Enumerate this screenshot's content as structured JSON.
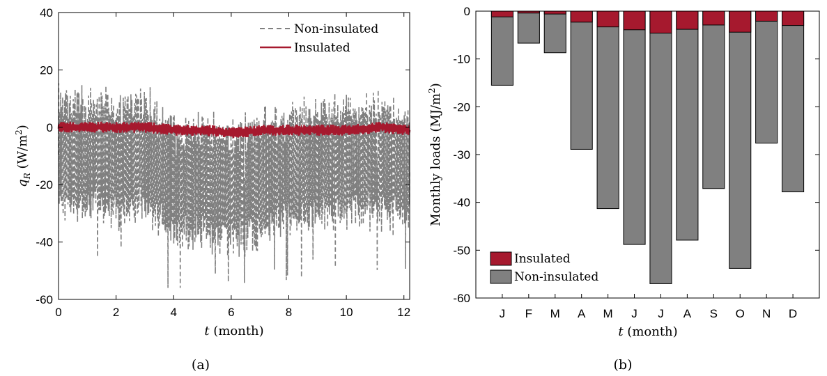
{
  "chart_data": [
    {
      "panel": "(a)",
      "type": "line",
      "xlabel_var": "t",
      "xlabel_unit": "(month)",
      "ylabel_var": "q",
      "ylabel_sub": "R",
      "ylabel_unit": "(W/m",
      "ylabel_sup": "2",
      "ylabel_close": ")",
      "xlim": [
        0,
        12.2
      ],
      "ylim": [
        -60,
        40
      ],
      "xticks": [
        0,
        2,
        4,
        6,
        8,
        10,
        12
      ],
      "yticks": [
        -60,
        -40,
        -20,
        0,
        20,
        40
      ],
      "legend": {
        "placement": "top-right"
      },
      "series": [
        {
          "name": "Non-insulated",
          "color": "#808080",
          "style": "dashed",
          "mean_envelope": [
            -8,
            -10,
            -12,
            -10,
            -20,
            -18,
            -22,
            -18,
            -15,
            -13,
            -12,
            -12,
            -14
          ]
        },
        {
          "name": "Insulated",
          "color": "#a6192e",
          "style": "solid",
          "mean_envelope": [
            0,
            0,
            0,
            0,
            -1,
            -1,
            -2,
            -1,
            -1,
            -1,
            -1,
            0,
            -1
          ]
        }
      ]
    },
    {
      "panel": "(b)",
      "type": "bar",
      "xlabel_var": "t",
      "xlabel_unit": "(month)",
      "ylabel_text": "Monthly loads (MJ/m",
      "ylabel_sup": "2",
      "ylabel_close": ")",
      "ylim": [
        -60,
        0
      ],
      "yticks": [
        0,
        -10,
        -20,
        -30,
        -40,
        -50,
        -60
      ],
      "categories": [
        "J",
        "F",
        "M",
        "A",
        "M",
        "J",
        "J",
        "A",
        "S",
        "O",
        "N",
        "D"
      ],
      "legend": {
        "placement": "bottom-left"
      },
      "series": [
        {
          "name": "Insulated",
          "color": "#a6192e",
          "values": [
            -1.2,
            -0.4,
            -0.6,
            -2.3,
            -3.3,
            -3.9,
            -4.6,
            -3.8,
            -2.9,
            -4.4,
            -2.1,
            -3.0
          ]
        },
        {
          "name": "Non-insulated",
          "color": "#808080",
          "values": [
            -15.5,
            -6.7,
            -8.7,
            -28.9,
            -41.3,
            -48.8,
            -57.0,
            -47.9,
            -37.1,
            -53.8,
            -27.6,
            -37.8
          ]
        }
      ]
    }
  ]
}
